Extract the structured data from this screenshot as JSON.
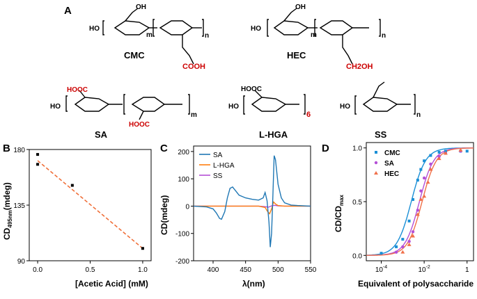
{
  "panels": {
    "A": "A",
    "B": "B",
    "C": "C",
    "D": "D"
  },
  "structures": [
    {
      "name": "CMC",
      "accent_text": "COOH"
    },
    {
      "name": "HEC",
      "accent_text": "CH2OH"
    },
    {
      "name": "SA",
      "accent_text": "HOOC"
    },
    {
      "name": "L-HGA",
      "repeat": "6"
    },
    {
      "name": "SS"
    }
  ],
  "colors": {
    "accent_red": "#cc0000",
    "sa": "#1f77b4",
    "lhga": "#ff7f0e",
    "ss": "#b44fd6",
    "cmc": "#1a8fd6",
    "hec": "#f0704a",
    "fit_b": "#f0703a"
  },
  "chart_data": [
    {
      "panel": "B",
      "type": "scatter",
      "xlabel": "[Acetic Acid] (mM)",
      "ylabel_main": "CD",
      "ylabel_sub": "495nm",
      "ylabel_tail": "(mdeg)",
      "xlim": [
        -0.08,
        1.08
      ],
      "ylim": [
        90,
        180
      ],
      "xticks": [
        0.0,
        0.5,
        1.0
      ],
      "xtick_labels": [
        "0.0",
        "0.5",
        "1.0"
      ],
      "yticks": [
        90,
        135,
        180
      ],
      "ytick_labels": [
        "90",
        "135",
        "180"
      ],
      "points": [
        [
          0.0,
          176
        ],
        [
          0.0,
          168
        ],
        [
          0.33,
          151
        ],
        [
          1.0,
          100
        ]
      ],
      "fit_line": [
        [
          0.0,
          171
        ],
        [
          1.0,
          100
        ]
      ],
      "grid": false
    },
    {
      "panel": "C",
      "type": "line",
      "xlabel": "λ(nm)",
      "ylabel": "CD(mdeg)",
      "xlim": [
        370,
        550
      ],
      "ylim": [
        -200,
        220
      ],
      "xticks": [
        400,
        450,
        500,
        550
      ],
      "xtick_labels": [
        "400",
        "450",
        "500",
        "550"
      ],
      "yticks": [
        -200,
        -100,
        0,
        100,
        200
      ],
      "ytick_labels": [
        "-200",
        "-100",
        "0",
        "100",
        "200"
      ],
      "legend": "top-left",
      "series": [
        {
          "name": "SA",
          "x": [
            370,
            390,
            400,
            405,
            410,
            413,
            418,
            422,
            426,
            430,
            435,
            440,
            450,
            460,
            470,
            477,
            480,
            483,
            486,
            488,
            490,
            492,
            494,
            496,
            500,
            505,
            510,
            520,
            530,
            550
          ],
          "y": [
            0,
            -3,
            -10,
            -25,
            -45,
            -48,
            -20,
            30,
            65,
            70,
            55,
            40,
            30,
            25,
            22,
            30,
            50,
            20,
            -60,
            -150,
            -100,
            40,
            185,
            170,
            80,
            30,
            12,
            4,
            2,
            0
          ]
        },
        {
          "name": "L-HGA",
          "x": [
            370,
            470,
            480,
            484,
            487,
            490,
            493,
            496,
            500,
            510,
            550
          ],
          "y": [
            0,
            0,
            -5,
            -20,
            -28,
            -10,
            15,
            8,
            2,
            0,
            0
          ]
        },
        {
          "name": "SS",
          "x": [
            370,
            420,
            470,
            480,
            485,
            490,
            495,
            500,
            510,
            550
          ],
          "y": [
            0,
            0,
            0,
            -2,
            -4,
            1,
            3,
            1,
            0,
            0
          ]
        }
      ],
      "grid": false
    },
    {
      "panel": "D",
      "type": "scatter",
      "xlabel": "Equivalent of polysaccharide",
      "ylabel_main": "CD/CD",
      "ylabel_sub": "max",
      "xscale": "log",
      "xlim": [
        2e-05,
        2
      ],
      "ylim": [
        -0.05,
        1.05
      ],
      "xticks": [
        0.0001,
        0.01,
        1
      ],
      "xtick_labels": [
        "10",
        "10",
        "1"
      ],
      "xtick_exponents": [
        "-4",
        "-2",
        ""
      ],
      "yticks": [
        0.0,
        0.5,
        1.0
      ],
      "ytick_labels": [
        "0.0",
        "0.5",
        "1.0"
      ],
      "legend": "top-left",
      "series": [
        {
          "name": "CMC",
          "x": [
            0.0001,
            0.0005,
            0.001,
            0.002,
            0.003,
            0.005,
            0.007,
            0.01,
            0.02,
            0.05,
            0.1,
            0.5,
            1.0
          ],
          "y": [
            0.02,
            0.08,
            0.15,
            0.32,
            0.52,
            0.7,
            0.8,
            0.88,
            0.93,
            0.96,
            0.97,
            0.97,
            0.97
          ]
        },
        {
          "name": "SA",
          "x": [
            0.0005,
            0.001,
            0.002,
            0.003,
            0.005,
            0.007,
            0.01,
            0.02,
            0.05,
            0.1,
            0.5
          ],
          "y": [
            0.03,
            0.08,
            0.13,
            0.22,
            0.42,
            0.6,
            0.72,
            0.85,
            0.92,
            0.95,
            0.97
          ]
        },
        {
          "name": "HEC",
          "x": [
            0.001,
            0.002,
            0.003,
            0.005,
            0.007,
            0.01,
            0.015,
            0.02,
            0.05,
            0.1,
            0.5
          ],
          "y": [
            0.03,
            0.1,
            0.18,
            0.38,
            0.52,
            0.55,
            0.68,
            0.8,
            0.9,
            0.95,
            0.98
          ]
        }
      ],
      "fits": [
        {
          "name": "CMC",
          "x50": 0.0025,
          "n": 1.3
        },
        {
          "name": "SA",
          "x50": 0.006,
          "n": 1.3
        },
        {
          "name": "HEC",
          "x50": 0.008,
          "n": 1.3
        }
      ],
      "grid": false
    }
  ]
}
